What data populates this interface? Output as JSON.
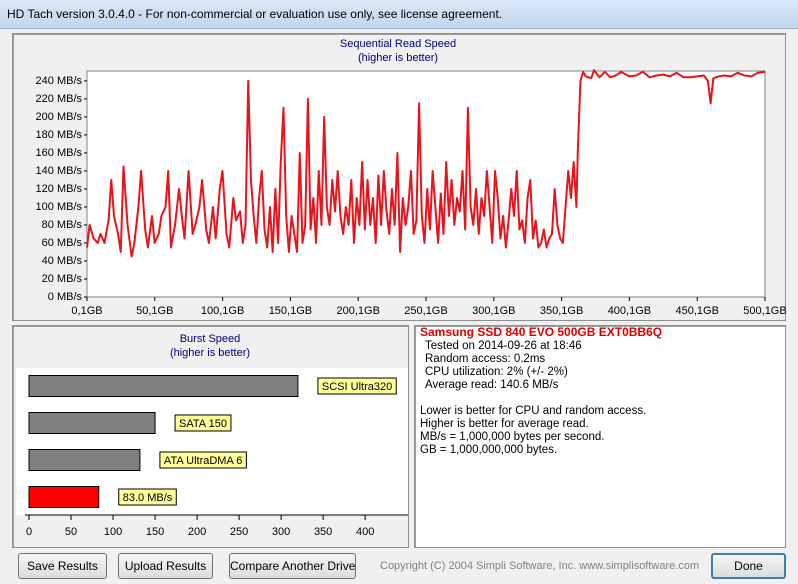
{
  "window_title": "HD Tach version 3.0.4.0  - For non-commercial or evaluation use only, see license agreement.",
  "chart_data": [
    {
      "type": "line",
      "title": "Sequential Read Speed",
      "subtitle": "(higher is better)",
      "color": "#e8141c",
      "xlim": [
        0.1,
        500.1
      ],
      "xticks": [
        {
          "value": 0.1,
          "label": "0,1GB"
        },
        {
          "value": 50.1,
          "label": "50,1GB"
        },
        {
          "value": 100.1,
          "label": "100,1GB"
        },
        {
          "value": 150.1,
          "label": "150,1GB"
        },
        {
          "value": 200.1,
          "label": "200,1GB"
        },
        {
          "value": 250.1,
          "label": "250,1GB"
        },
        {
          "value": 300.1,
          "label": "300,1GB"
        },
        {
          "value": 350.1,
          "label": "350,1GB"
        },
        {
          "value": 400.1,
          "label": "400,1GB"
        },
        {
          "value": 450.1,
          "label": "450,1GB"
        },
        {
          "value": 500.1,
          "label": "500,1GB"
        }
      ],
      "ylim": [
        0,
        251
      ],
      "yticks": [
        {
          "value": 0,
          "label": "0 MB/s"
        },
        {
          "value": 20,
          "label": "20 MB/s"
        },
        {
          "value": 40,
          "label": "40 MB/s"
        },
        {
          "value": 60,
          "label": "60 MB/s"
        },
        {
          "value": 80,
          "label": "80 MB/s"
        },
        {
          "value": 100,
          "label": "100 MB/s"
        },
        {
          "value": 120,
          "label": "120 MB/s"
        },
        {
          "value": 140,
          "label": "140 MB/s"
        },
        {
          "value": 160,
          "label": "160 MB/s"
        },
        {
          "value": 180,
          "label": "180 MB/s"
        },
        {
          "value": 200,
          "label": "200 MB/s"
        },
        {
          "value": 220,
          "label": "220 MB/s"
        },
        {
          "value": 240,
          "label": "240 MB/s"
        }
      ],
      "x": [
        0.1,
        2,
        5,
        8,
        10,
        13,
        16,
        18,
        20,
        23,
        25,
        27,
        30,
        33,
        35,
        38,
        40,
        43,
        45,
        48,
        50,
        53,
        55,
        58,
        60,
        62,
        65,
        68,
        70,
        72,
        75,
        78,
        80,
        83,
        85,
        88,
        90,
        93,
        95,
        98,
        100,
        103,
        105,
        108,
        110,
        113,
        115,
        117,
        119,
        121,
        123,
        125,
        127,
        129,
        131,
        133,
        135,
        137,
        139,
        141,
        143,
        145,
        147,
        149,
        151,
        153,
        155,
        157,
        159,
        161,
        163,
        165,
        167,
        169,
        171,
        173,
        175,
        177,
        179,
        181,
        183,
        185,
        187,
        189,
        191,
        193,
        195,
        197,
        199,
        201,
        203,
        205,
        207,
        209,
        211,
        213,
        215,
        217,
        219,
        221,
        223,
        225,
        227,
        229,
        231,
        233,
        235,
        237,
        239,
        241,
        243,
        245,
        247,
        249,
        251,
        253,
        255,
        257,
        259,
        261,
        263,
        265,
        267,
        269,
        271,
        273,
        275,
        277,
        279,
        281,
        283,
        285,
        287,
        289,
        291,
        293,
        295,
        297,
        299,
        301,
        303,
        305,
        307,
        309,
        311,
        313,
        315,
        317,
        319,
        321,
        323,
        325,
        327,
        329,
        331,
        333,
        335,
        337,
        339,
        341,
        343,
        345,
        347,
        349,
        351,
        353,
        355,
        357,
        359,
        361,
        362,
        364,
        366,
        368,
        372,
        374,
        378,
        382,
        386,
        390,
        394,
        400,
        405,
        410,
        415,
        420,
        425,
        430,
        435,
        440,
        445,
        450,
        455,
        458,
        460,
        462,
        466,
        470,
        475,
        480,
        485,
        490,
        495,
        500.1
      ],
      "values": [
        55,
        80,
        65,
        60,
        70,
        60,
        85,
        130,
        90,
        70,
        50,
        145,
        80,
        45,
        60,
        100,
        140,
        75,
        55,
        90,
        60,
        70,
        90,
        100,
        140,
        55,
        80,
        120,
        90,
        65,
        140,
        70,
        80,
        100,
        130,
        75,
        60,
        100,
        65,
        120,
        140,
        70,
        55,
        110,
        85,
        95,
        60,
        80,
        240,
        130,
        90,
        60,
        110,
        140,
        75,
        55,
        100,
        50,
        120,
        60,
        150,
        210,
        90,
        50,
        90,
        70,
        50,
        160,
        60,
        80,
        220,
        75,
        110,
        60,
        140,
        80,
        200,
        100,
        80,
        130,
        95,
        140,
        90,
        70,
        100,
        80,
        130,
        60,
        110,
        80,
        150,
        75,
        130,
        80,
        110,
        60,
        135,
        80,
        140,
        95,
        70,
        120,
        80,
        160,
        50,
        110,
        80,
        100,
        140,
        70,
        85,
        215,
        90,
        60,
        120,
        75,
        140,
        100,
        60,
        115,
        70,
        150,
        90,
        130,
        80,
        110,
        95,
        140,
        75,
        210,
        100,
        80,
        120,
        70,
        110,
        90,
        140,
        100,
        60,
        140,
        110,
        65,
        90,
        55,
        85,
        120,
        90,
        140,
        75,
        85,
        60,
        110,
        130,
        65,
        85,
        55,
        60,
        75,
        55,
        65,
        70,
        120,
        80,
        65,
        60,
        100,
        140,
        110,
        150,
        100,
        160,
        240,
        250,
        245,
        243,
        252,
        244,
        250,
        244,
        246,
        250,
        245,
        246,
        250,
        244,
        246,
        247,
        245,
        249,
        244,
        244,
        245,
        246,
        240,
        215,
        243,
        245,
        246,
        245,
        249,
        246,
        245,
        249,
        250
      ]
    },
    {
      "type": "hbar",
      "title": "Burst Speed",
      "subtitle": "(higher is better)",
      "categories": [
        "SCSI Ultra320",
        "SATA 150",
        "ATA UltraDMA 6",
        null
      ],
      "values": [
        320,
        150,
        132,
        83
      ],
      "value_labels": [
        null,
        null,
        null,
        "83.0 MB/s"
      ],
      "colors": [
        "#808080",
        "#808080",
        "#808080",
        "#ff0000"
      ],
      "xlim": [
        0,
        451
      ],
      "xticks": [
        0,
        50,
        100,
        150,
        200,
        250,
        300,
        350,
        400
      ]
    }
  ],
  "info": {
    "drive": "Samsung SSD 840 EVO 500GB EXT0BB6Q",
    "results": [
      "Tested on 2014-09-26 at 18:46",
      "Random access: 0.2ms",
      "CPU utilization: 2% (+/- 2%)",
      "Average read: 140.6 MB/s"
    ],
    "notes": [
      "Lower is better for CPU and random access.",
      "Higher is better for average read.",
      "MB/s = 1,000,000 bytes per second.",
      "GB = 1,000,000,000 bytes."
    ]
  },
  "buttons": [
    "Save Results",
    "Upload Results",
    "Compare Another Drive",
    "Done"
  ],
  "copyright": "Copyright (C) 2004 Simpli Software, Inc. www.simplisoftware.com"
}
